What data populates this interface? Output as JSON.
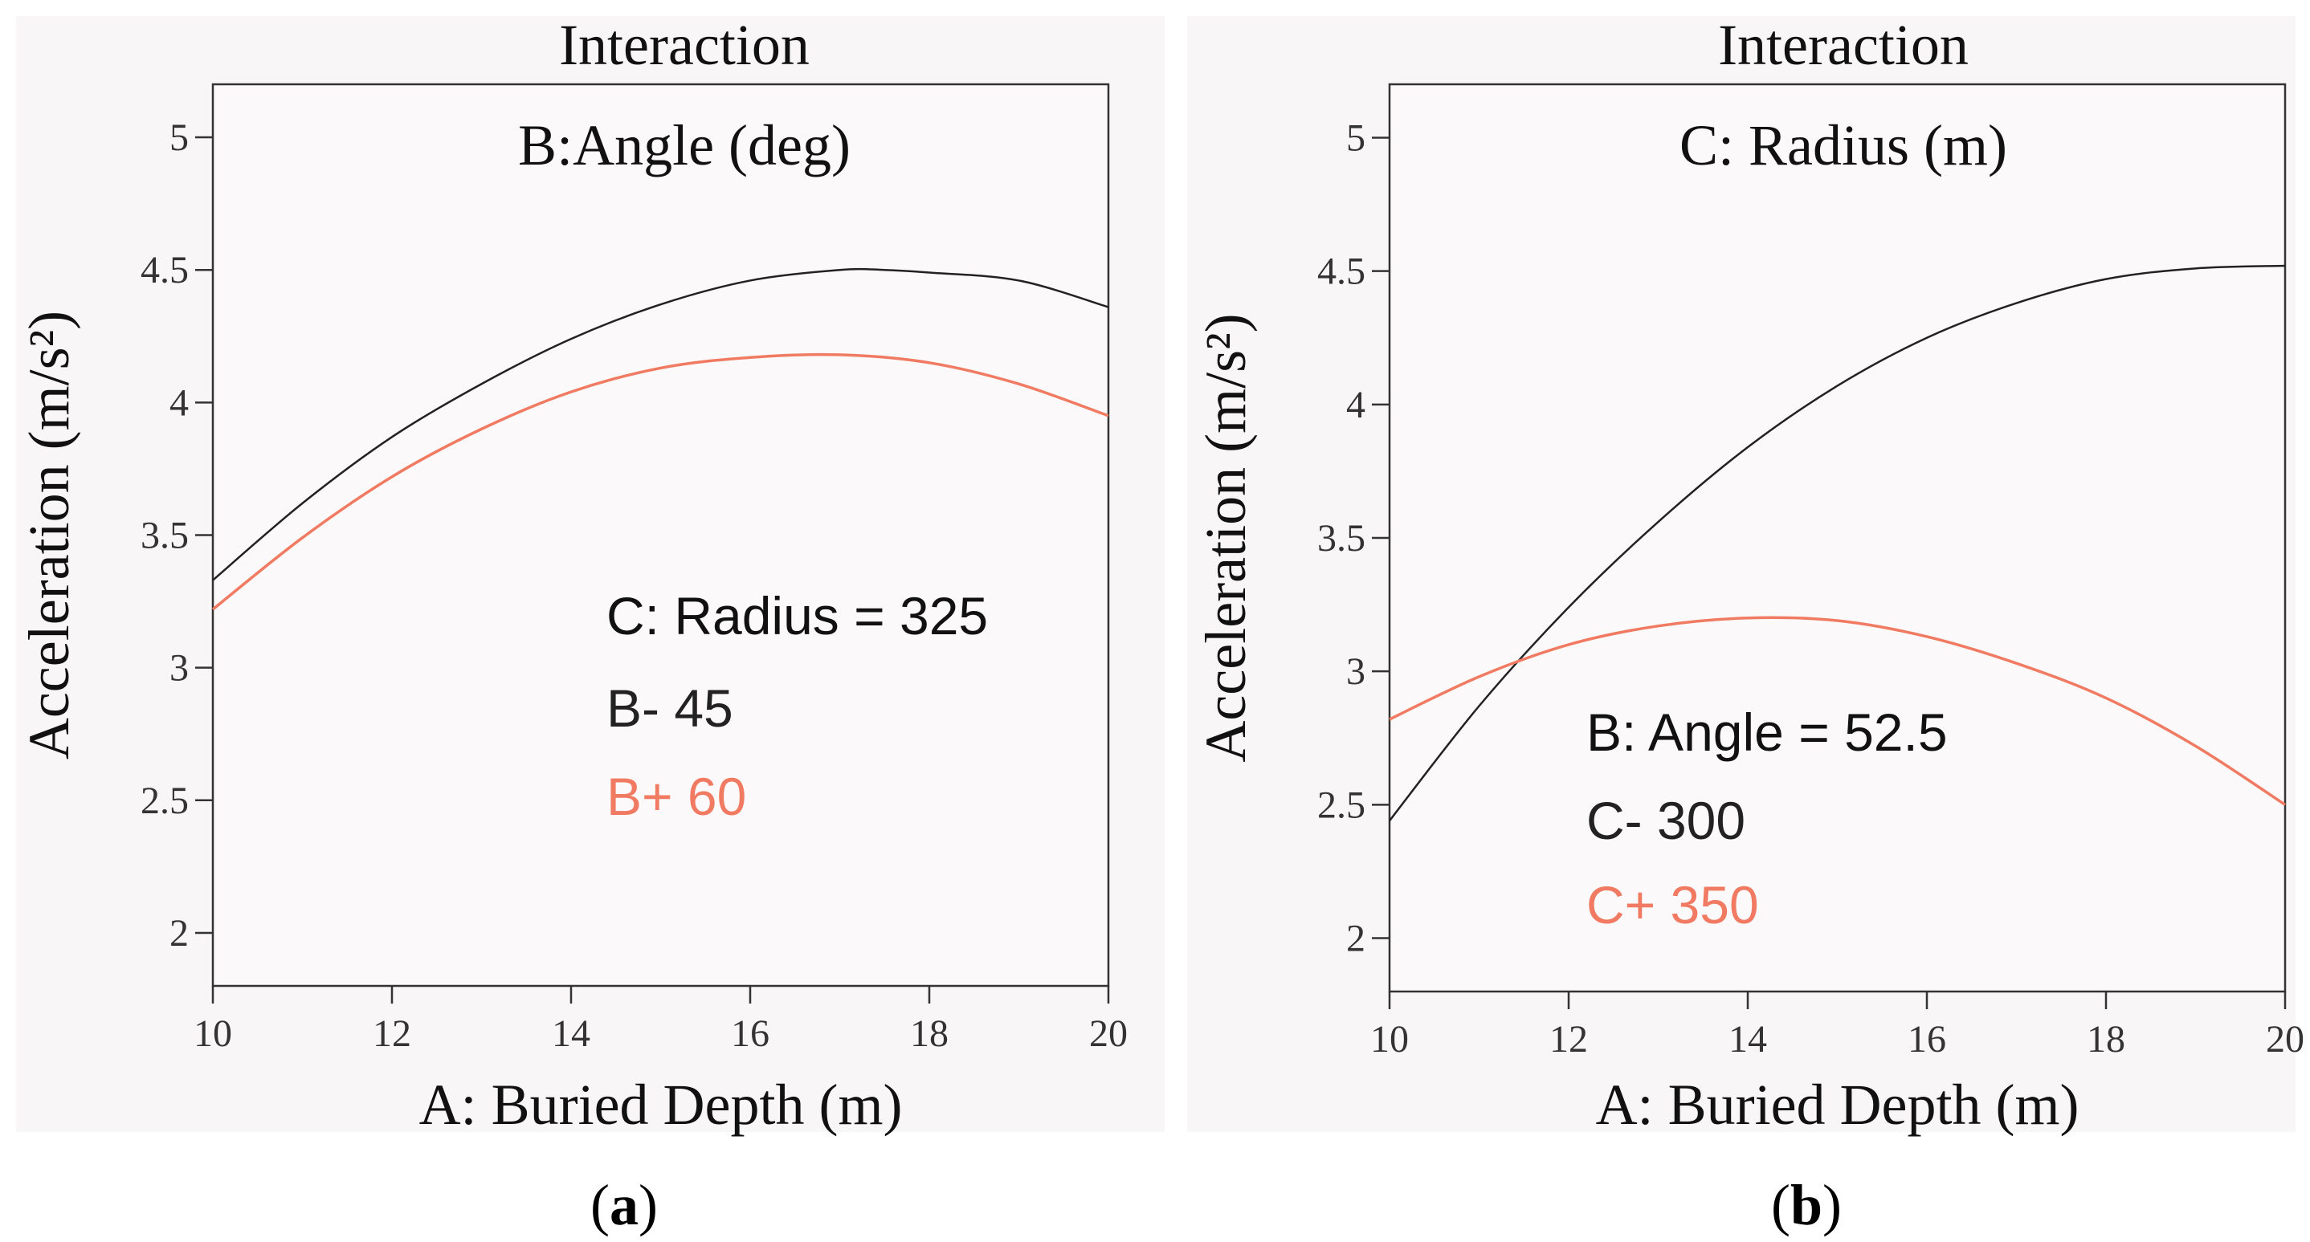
{
  "chart_data": [
    {
      "type": "line",
      "title": "Interaction",
      "subtitle": "B:Angle (deg)",
      "xlabel": "A: Buried Depth (m)",
      "ylabel": "Acceleration (m/s²)",
      "xlim": [
        10,
        20
      ],
      "ylim": [
        1.8,
        5.2
      ],
      "xticks": [
        "10",
        "12",
        "14",
        "16",
        "18",
        "20"
      ],
      "yticks": [
        "2",
        "2.5",
        "3",
        "3.5",
        "4",
        "4.5",
        "5"
      ],
      "legend_title": "C: Radius = 325",
      "series": [
        {
          "name": "B- 45",
          "color": "#222222",
          "x": [
            10,
            11,
            12,
            13,
            14,
            15,
            16,
            17,
            17.5,
            18,
            19,
            20
          ],
          "y": [
            3.33,
            3.62,
            3.87,
            4.07,
            4.24,
            4.37,
            4.46,
            4.5,
            4.5,
            4.49,
            4.46,
            4.36
          ]
        },
        {
          "name": "B+ 60",
          "color": "#f07b62",
          "x": [
            10,
            11,
            12,
            13,
            14,
            15,
            16,
            17,
            18,
            19,
            20
          ],
          "y": [
            3.22,
            3.49,
            3.72,
            3.9,
            4.04,
            4.13,
            4.17,
            4.18,
            4.15,
            4.07,
            3.95
          ]
        }
      ],
      "caption": "a"
    },
    {
      "type": "line",
      "title": "Interaction",
      "subtitle": "C: Radius (m)",
      "xlabel": "A: Buried Depth (m)",
      "ylabel": "Acceleration (m/s²)",
      "xlim": [
        10,
        20
      ],
      "ylim": [
        1.8,
        5.2
      ],
      "xticks": [
        "10",
        "12",
        "14",
        "16",
        "18",
        "20"
      ],
      "yticks": [
        "2",
        "2.5",
        "3",
        "3.5",
        "4",
        "4.5",
        "5"
      ],
      "legend_title": "B: Angle = 52.5",
      "series": [
        {
          "name": "C- 300",
          "color": "#222222",
          "x": [
            10,
            11,
            12,
            13,
            14,
            15,
            16,
            17,
            18,
            19,
            20
          ],
          "y": [
            2.44,
            2.87,
            3.24,
            3.56,
            3.84,
            4.07,
            4.25,
            4.38,
            4.47,
            4.51,
            4.52
          ]
        },
        {
          "name": "C+ 350",
          "color": "#f07b62",
          "x": [
            10,
            11,
            12,
            13,
            14,
            15,
            16,
            17,
            18,
            19,
            20
          ],
          "y": [
            2.82,
            2.98,
            3.1,
            3.17,
            3.2,
            3.19,
            3.13,
            3.03,
            2.9,
            2.72,
            2.5
          ]
        }
      ],
      "caption": "b"
    }
  ]
}
